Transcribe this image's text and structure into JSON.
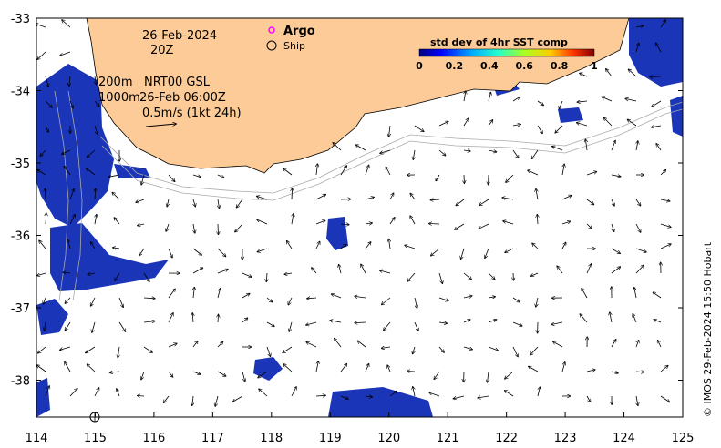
{
  "map": {
    "date": "26-Feb-2024",
    "time": "20Z",
    "depth_note_1": "200m",
    "depth_note_2": "1000m",
    "product": "NRT00 GSL",
    "product_time": "26-Feb 06:00Z",
    "scale_label": "0.5m/s (1kt 24h)",
    "legend_argo": "Argo",
    "legend_ship": "Ship",
    "colorbar_title": "std dev of 4hr SST comp",
    "colorbar_ticks": [
      "0",
      "0.2",
      "0.4",
      "0.6",
      "0.8",
      "1"
    ],
    "credit": "© IMOS 29-Feb-2024 15:50 Hobart",
    "x_ticks": [
      "114",
      "115",
      "116",
      "117",
      "118",
      "119",
      "120",
      "121",
      "122",
      "123",
      "124",
      "125"
    ],
    "y_ticks": [
      "-33",
      "-34",
      "-35",
      "-36",
      "-37",
      "-38"
    ],
    "land_color": "#FCCB97",
    "sst_color": "#1a35b8",
    "argo_color": "#ff00ff"
  }
}
